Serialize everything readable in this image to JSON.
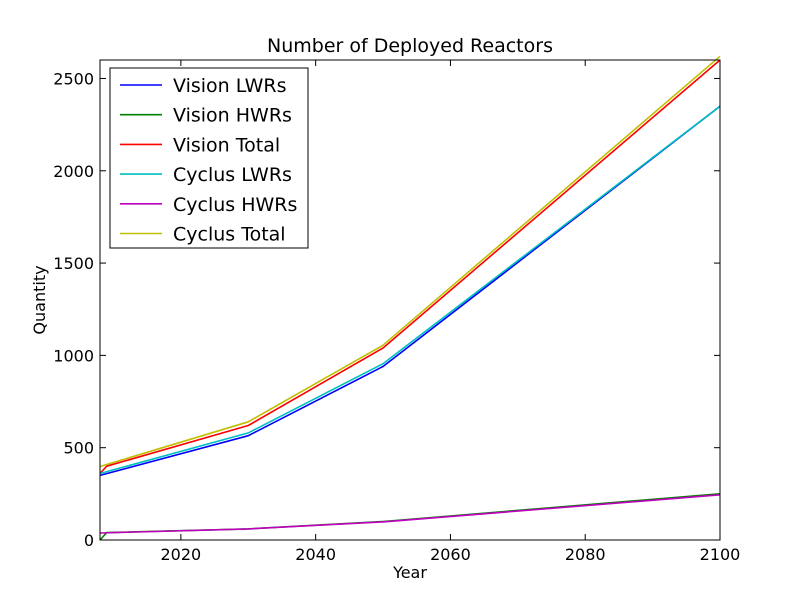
{
  "chart_data": {
    "type": "line",
    "title": "Number of Deployed Reactors",
    "xlabel": "Year",
    "ylabel": "Quantity",
    "xlim": [
      2008,
      2100
    ],
    "ylim": [
      0,
      2600
    ],
    "xticks": [
      2020,
      2040,
      2060,
      2080,
      2100
    ],
    "yticks": [
      0,
      500,
      1000,
      1500,
      2000,
      2500
    ],
    "grid": false,
    "legend_position": "top-left",
    "series": [
      {
        "name": "Vision LWRs",
        "color": "#0000ff",
        "x": [
          2008,
          2030,
          2050,
          2100
        ],
        "y": [
          350,
          565,
          940,
          2350
        ]
      },
      {
        "name": "Vision HWRs",
        "color": "#008000",
        "x": [
          2008,
          2009,
          2030,
          2050,
          2100
        ],
        "y": [
          0,
          40,
          60,
          100,
          250
        ]
      },
      {
        "name": "Vision Total",
        "color": "#ff0000",
        "x": [
          2008,
          2009,
          2030,
          2050,
          2100
        ],
        "y": [
          360,
          400,
          620,
          1040,
          2600
        ]
      },
      {
        "name": "Cyclus LWRs",
        "color": "#00bfbf",
        "x": [
          2008,
          2030,
          2050,
          2100
        ],
        "y": [
          360,
          580,
          955,
          2350
        ]
      },
      {
        "name": "Cyclus HWRs",
        "color": "#bf00bf",
        "x": [
          2008,
          2030,
          2050,
          2100
        ],
        "y": [
          38,
          60,
          98,
          245
        ]
      },
      {
        "name": "Cyclus Total",
        "color": "#bfbf00",
        "x": [
          2008,
          2030,
          2050,
          2100
        ],
        "y": [
          398,
          640,
          1055,
          2620
        ]
      }
    ]
  }
}
